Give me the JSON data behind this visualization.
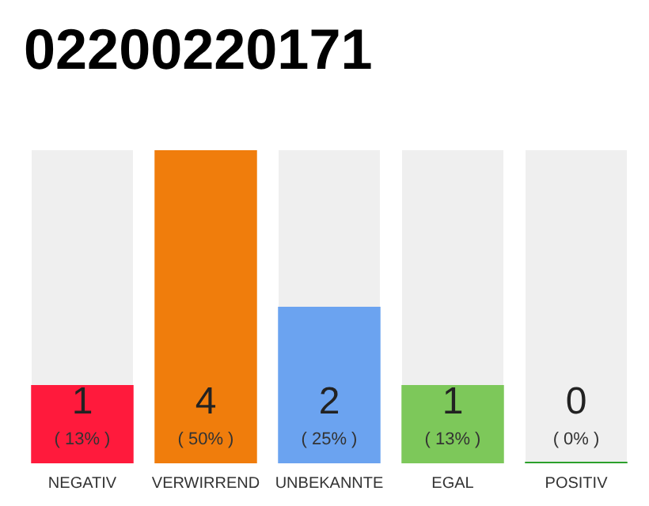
{
  "chart_data": {
    "type": "bar",
    "title": "02200220171",
    "categories": [
      "NEGATIV",
      "VERWIRREND",
      "UNBEKANNTE",
      "EGAL",
      "POSITIV"
    ],
    "values": [
      1,
      4,
      2,
      1,
      0
    ],
    "colors": [
      "#ff1a3c",
      "#f07d0c",
      "#6ba3f0",
      "#7dc85a",
      "#2ca02c"
    ],
    "ylim": [
      0,
      4
    ],
    "tick_labels": "x",
    "value_labels": [
      "1\n( 13% )",
      "4\n( 50% )",
      "2\n( 25% )",
      "1\n( 13% )",
      "0\n( 0% )"
    ]
  }
}
